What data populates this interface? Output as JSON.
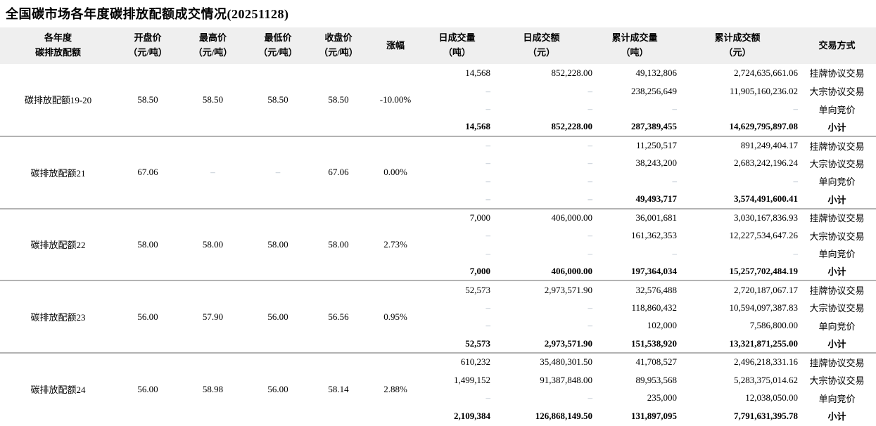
{
  "title": "全国碳市场各年度碳排放配额成交情况(20251128)",
  "colors": {
    "header_bg": "#efefef",
    "group_separator_line": "#b3b3b3",
    "dash_text": "#a9b4c2"
  },
  "table": {
    "headers": [
      {
        "l1": "各年度",
        "l2": "碳排放配额"
      },
      {
        "l1": "开盘价",
        "l2": "（元/吨）"
      },
      {
        "l1": "最高价",
        "l2": "（元/吨）"
      },
      {
        "l1": "最低价",
        "l2": "（元/吨）"
      },
      {
        "l1": "收盘价",
        "l2": "（元/吨）"
      },
      {
        "l1": "涨幅",
        "l2": ""
      },
      {
        "l1": "日成交量",
        "l2": "（吨）"
      },
      {
        "l1": "日成交额",
        "l2": "（元）"
      },
      {
        "l1": "累计成交量",
        "l2": "（吨）"
      },
      {
        "l1": "累计成交额",
        "l2": "（元）"
      },
      {
        "l1": "交易方式",
        "l2": ""
      }
    ],
    "groups": [
      {
        "name": "碳排放配额19-20",
        "open": "58.50",
        "high": "58.50",
        "low": "58.50",
        "close": "58.50",
        "change": "-10.00%",
        "rows": [
          {
            "daily_volume": "14,568",
            "daily_amount": "852,228.00",
            "cum_volume": "49,132,806",
            "cum_amount": "2,724,635,661.06",
            "method": "挂牌协议交易",
            "subtotal": false
          },
          {
            "daily_volume": "–",
            "daily_amount": "–",
            "cum_volume": "238,256,649",
            "cum_amount": "11,905,160,236.02",
            "method": "大宗协议交易",
            "subtotal": false
          },
          {
            "daily_volume": "–",
            "daily_amount": "–",
            "cum_volume": "–",
            "cum_amount": "–",
            "method": "单向竞价",
            "subtotal": false
          },
          {
            "daily_volume": "14,568",
            "daily_amount": "852,228.00",
            "cum_volume": "287,389,455",
            "cum_amount": "14,629,795,897.08",
            "method": "小计",
            "subtotal": true
          }
        ]
      },
      {
        "name": "碳排放配额21",
        "open": "67.06",
        "high": "–",
        "low": "–",
        "close": "67.06",
        "change": "0.00%",
        "rows": [
          {
            "daily_volume": "–",
            "daily_amount": "–",
            "cum_volume": "11,250,517",
            "cum_amount": "891,249,404.17",
            "method": "挂牌协议交易",
            "subtotal": false
          },
          {
            "daily_volume": "–",
            "daily_amount": "–",
            "cum_volume": "38,243,200",
            "cum_amount": "2,683,242,196.24",
            "method": "大宗协议交易",
            "subtotal": false
          },
          {
            "daily_volume": "–",
            "daily_amount": "–",
            "cum_volume": "–",
            "cum_amount": "–",
            "method": "单向竞价",
            "subtotal": false
          },
          {
            "daily_volume": "–",
            "daily_amount": "–",
            "cum_volume": "49,493,717",
            "cum_amount": "3,574,491,600.41",
            "method": "小计",
            "subtotal": true
          }
        ]
      },
      {
        "name": "碳排放配额22",
        "open": "58.00",
        "high": "58.00",
        "low": "58.00",
        "close": "58.00",
        "change": "2.73%",
        "rows": [
          {
            "daily_volume": "7,000",
            "daily_amount": "406,000.00",
            "cum_volume": "36,001,681",
            "cum_amount": "3,030,167,836.93",
            "method": "挂牌协议交易",
            "subtotal": false
          },
          {
            "daily_volume": "–",
            "daily_amount": "–",
            "cum_volume": "161,362,353",
            "cum_amount": "12,227,534,647.26",
            "method": "大宗协议交易",
            "subtotal": false
          },
          {
            "daily_volume": "–",
            "daily_amount": "–",
            "cum_volume": "–",
            "cum_amount": "–",
            "method": "单向竞价",
            "subtotal": false
          },
          {
            "daily_volume": "7,000",
            "daily_amount": "406,000.00",
            "cum_volume": "197,364,034",
            "cum_amount": "15,257,702,484.19",
            "method": "小计",
            "subtotal": true
          }
        ]
      },
      {
        "name": "碳排放配额23",
        "open": "56.00",
        "high": "57.90",
        "low": "56.00",
        "close": "56.56",
        "change": "0.95%",
        "rows": [
          {
            "daily_volume": "52,573",
            "daily_amount": "2,973,571.90",
            "cum_volume": "32,576,488",
            "cum_amount": "2,720,187,067.17",
            "method": "挂牌协议交易",
            "subtotal": false
          },
          {
            "daily_volume": "–",
            "daily_amount": "–",
            "cum_volume": "118,860,432",
            "cum_amount": "10,594,097,387.83",
            "method": "大宗协议交易",
            "subtotal": false
          },
          {
            "daily_volume": "–",
            "daily_amount": "–",
            "cum_volume": "102,000",
            "cum_amount": "7,586,800.00",
            "method": "单向竞价",
            "subtotal": false
          },
          {
            "daily_volume": "52,573",
            "daily_amount": "2,973,571.90",
            "cum_volume": "151,538,920",
            "cum_amount": "13,321,871,255.00",
            "method": "小计",
            "subtotal": true
          }
        ]
      },
      {
        "name": "碳排放配额24",
        "open": "56.00",
        "high": "58.98",
        "low": "56.00",
        "close": "58.14",
        "change": "2.88%",
        "rows": [
          {
            "daily_volume": "610,232",
            "daily_amount": "35,480,301.50",
            "cum_volume": "41,708,527",
            "cum_amount": "2,496,218,331.16",
            "method": "挂牌协议交易",
            "subtotal": false
          },
          {
            "daily_volume": "1,499,152",
            "daily_amount": "91,387,848.00",
            "cum_volume": "89,953,568",
            "cum_amount": "5,283,375,014.62",
            "method": "大宗协议交易",
            "subtotal": false
          },
          {
            "daily_volume": "–",
            "daily_amount": "–",
            "cum_volume": "235,000",
            "cum_amount": "12,038,050.00",
            "method": "单向竞价",
            "subtotal": false
          },
          {
            "daily_volume": "2,109,384",
            "daily_amount": "126,868,149.50",
            "cum_volume": "131,897,095",
            "cum_amount": "7,791,631,395.78",
            "method": "小计",
            "subtotal": true
          }
        ]
      }
    ]
  }
}
